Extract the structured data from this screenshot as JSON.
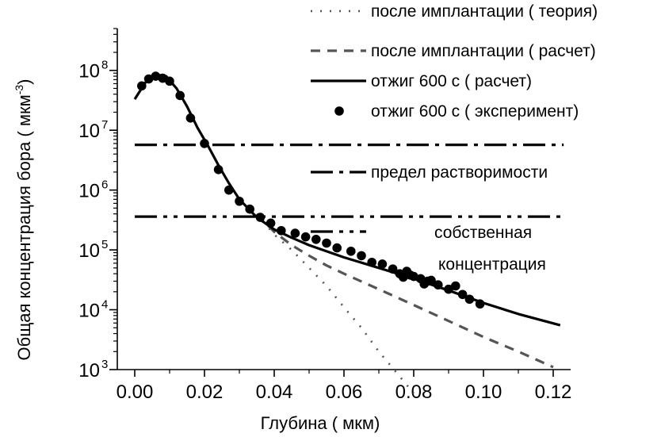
{
  "chart_data": {
    "type": "line",
    "xlabel": "Глубина (  мкм)",
    "ylabel_main": "Общая концентрация бора (  мкм",
    "ylabel_sup": "-3",
    "ylabel_close": ")",
    "xlim": [
      -0.005,
      0.125
    ],
    "ylim": [
      1000,
      500000000
    ],
    "yscale": "log",
    "x_ticks": [
      {
        "value": 0.0,
        "label": "0.00"
      },
      {
        "value": 0.02,
        "label": "0.02"
      },
      {
        "value": 0.04,
        "label": "0.04"
      },
      {
        "value": 0.06,
        "label": "0.06"
      },
      {
        "value": 0.08,
        "label": "0.08"
      },
      {
        "value": 0.1,
        "label": "0.10"
      },
      {
        "value": 0.12,
        "label": "0.12"
      }
    ],
    "y_ticks": [
      {
        "value": 1000,
        "base": "10",
        "exp": "3"
      },
      {
        "value": 10000,
        "base": "10",
        "exp": "4"
      },
      {
        "value": 100000,
        "base": "10",
        "exp": "5"
      },
      {
        "value": 1000000,
        "base": "10",
        "exp": "6"
      },
      {
        "value": 10000000,
        "base": "10",
        "exp": "7"
      },
      {
        "value": 100000000,
        "base": "10",
        "exp": "8"
      }
    ],
    "grid": false,
    "legend_position": "top-right",
    "colors": {
      "ink": "#000000",
      "dotted": "#555555",
      "background": "#ffffff"
    },
    "series": [
      {
        "name": "после имплантации (  теория)",
        "style": "dotted",
        "x": [
          0.035,
          0.04,
          0.045,
          0.05,
          0.055,
          0.06,
          0.065,
          0.07,
          0.075,
          0.08
        ],
        "y": [
          400000,
          180000,
          100000,
          50000,
          25000,
          11000,
          5000,
          2000,
          900,
          400
        ]
      },
      {
        "name": "после имплантации (  расчет)",
        "style": "dashed",
        "x": [
          0.035,
          0.04,
          0.045,
          0.05,
          0.055,
          0.06,
          0.07,
          0.08,
          0.09,
          0.1,
          0.11,
          0.12
        ],
        "y": [
          400000,
          200000,
          120000,
          80000,
          55000,
          40000,
          22000,
          12000,
          6500,
          3500,
          2000,
          1100
        ]
      },
      {
        "name": "отжиг 600 с (  расчет)",
        "style": "solid",
        "x": [
          0.0,
          0.003,
          0.006,
          0.009,
          0.012,
          0.015,
          0.018,
          0.021,
          0.024,
          0.027,
          0.03,
          0.035,
          0.04,
          0.045,
          0.05,
          0.06,
          0.07,
          0.08,
          0.09,
          0.1,
          0.11,
          0.122
        ],
        "y": [
          33000000,
          62000000,
          85000000,
          80000000,
          50000000,
          25000000,
          11000000,
          5500000,
          2600000,
          1300000,
          700000,
          350000,
          220000,
          160000,
          120000,
          75000,
          50000,
          33000,
          21000,
          13000,
          8500,
          5500
        ]
      },
      {
        "name": "отжиг 600 с (  эксперимент)",
        "style": "markers",
        "x": [
          0.002,
          0.004,
          0.006,
          0.008,
          0.01,
          0.013,
          0.016,
          0.02,
          0.024,
          0.027,
          0.03,
          0.033,
          0.036,
          0.039,
          0.042,
          0.046,
          0.049,
          0.052,
          0.055,
          0.058,
          0.062,
          0.065,
          0.068,
          0.071,
          0.074,
          0.076,
          0.077,
          0.078,
          0.079,
          0.08,
          0.082,
          0.083,
          0.084,
          0.085,
          0.087,
          0.09,
          0.092,
          0.094,
          0.096,
          0.099
        ],
        "y": [
          55000000,
          72000000,
          80000000,
          74000000,
          66000000,
          38000000,
          16000000,
          6000000,
          2200000,
          1000000,
          650000,
          480000,
          350000,
          280000,
          210000,
          190000,
          165000,
          150000,
          130000,
          108000,
          95000,
          80000,
          62000,
          58000,
          48000,
          40000,
          35000,
          44000,
          38000,
          36000,
          33000,
          27000,
          30000,
          31000,
          26000,
          22000,
          25000,
          18000,
          15000,
          12500
        ]
      },
      {
        "name": "предел растворимости",
        "style": "dashdot",
        "x": [
          0.0,
          0.123
        ],
        "y": [
          5700000,
          5700000
        ]
      },
      {
        "name_lines": [
          "собственная",
          "концентрация"
        ],
        "style": "dashdotdot",
        "x": [
          0.0,
          0.123
        ],
        "y": [
          360000,
          360000
        ]
      }
    ]
  }
}
